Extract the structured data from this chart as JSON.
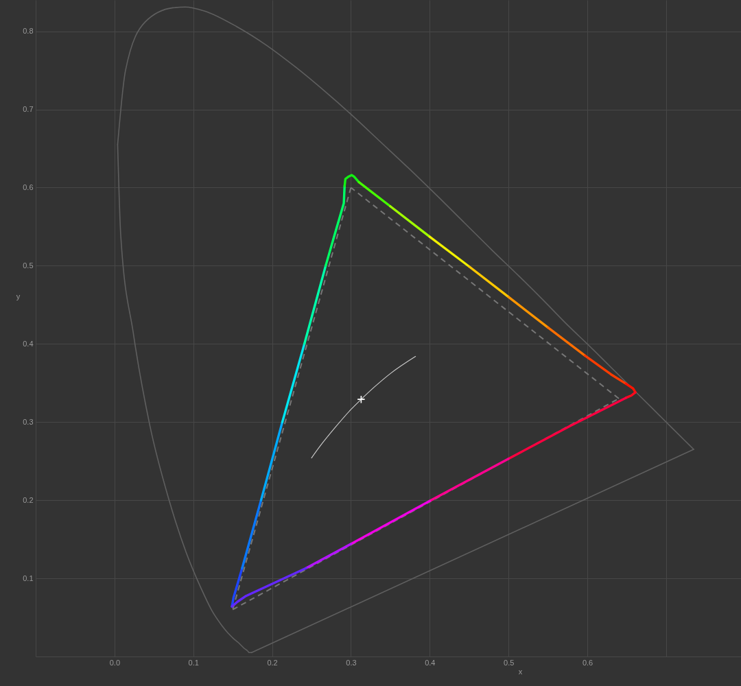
{
  "chart_data": {
    "type": "line",
    "xlabel": "x",
    "ylabel": "y",
    "xlim": [
      -0.1,
      0.795
    ],
    "ylim": [
      0,
      0.84
    ],
    "xticks": [
      {
        "value": 0,
        "label": "0.0"
      },
      0.1,
      0.2,
      0.3,
      0.4,
      0.5,
      0.6,
      {
        "value": 0.7,
        "label": null
      }
    ],
    "yticks": [
      0.1,
      0.2,
      0.3,
      0.4,
      0.5,
      0.6,
      0.7,
      0.8
    ],
    "grid": true,
    "series": [
      {
        "color": "#5f5f5f",
        "x": [
          0.174,
          0.173,
          0.171,
          0.169,
          0.164,
          0.161,
          0.157,
          0.151,
          0.144,
          0.136,
          0.124,
          0.11,
          0.091,
          0.069,
          0.045,
          0.024,
          0.008,
          0.004
        ],
        "values": [
          0.005,
          0.005,
          0.005,
          0.007,
          0.011,
          0.014,
          0.018,
          0.023,
          0.03,
          0.04,
          0.058,
          0.087,
          0.133,
          0.201,
          0.295,
          0.413,
          0.538,
          0.655
        ]
      },
      {
        "color": "#5f5f5f",
        "x": [
          0.004,
          0.014,
          0.039,
          0.074,
          0.09,
          0.114,
          0.155,
          0.193,
          0.23,
          0.266,
          0.302,
          0.337,
          0.373,
          0.409,
          0.444,
          0.479,
          0.513,
          0.545,
          0.575,
          0.603,
          0.627,
          0.648,
          0.666,
          0.68,
          0.692,
          0.708,
          0.719,
          0.73,
          0.735
        ],
        "values": [
          0.655,
          0.75,
          0.812,
          0.83,
          0.831,
          0.826,
          0.806,
          0.782,
          0.754,
          0.724,
          0.692,
          0.659,
          0.625,
          0.59,
          0.555,
          0.52,
          0.487,
          0.455,
          0.424,
          0.397,
          0.373,
          0.352,
          0.334,
          0.32,
          0.308,
          0.292,
          0.281,
          0.27,
          0.265
        ]
      },
      {
        "color": "#5f5f5f",
        "x": [
          0.735,
          0.174
        ],
        "values": [
          0.265,
          0.005
        ]
      },
      {
        "color": "#cccccc",
        "x": [
          0.25,
          0.26,
          0.28,
          0.3,
          0.313,
          0.33,
          0.35,
          0.382
        ],
        "values": [
          0.254,
          0.268,
          0.293,
          0.316,
          0.329,
          0.345,
          0.362,
          0.384
        ]
      },
      {
        "color": "#777777",
        "line_style": "dashed",
        "x": [
          0.64,
          0.3
        ],
        "values": [
          0.33,
          0.6
        ]
      },
      {
        "color": "#777777",
        "line_style": "dashed",
        "x": [
          0.3,
          0.15
        ],
        "values": [
          0.6,
          0.06
        ]
      },
      {
        "color": "#777777",
        "line_style": "dashed",
        "x": [
          0.15,
          0.64
        ],
        "values": [
          0.06,
          0.33
        ]
      },
      {
        "color": "#1e46ff",
        "x": [
          0.149,
          0.151,
          0.162
        ],
        "values": [
          0.064,
          0.075,
          0.113
        ]
      },
      {
        "color": "#0a78ff",
        "x": [
          0.162,
          0.186
        ],
        "values": [
          0.113,
          0.2
        ]
      },
      {
        "color": "#00aaff",
        "x": [
          0.186,
          0.213
        ],
        "values": [
          0.2,
          0.3
        ]
      },
      {
        "color": "#00e6f0",
        "x": [
          0.213,
          0.241
        ],
        "values": [
          0.3,
          0.4
        ]
      },
      {
        "color": "#00ffaa",
        "x": [
          0.241,
          0.268
        ],
        "values": [
          0.4,
          0.5
        ]
      },
      {
        "color": "#00ff64",
        "x": [
          0.268,
          0.278,
          0.291,
          0.292
        ],
        "values": [
          0.5,
          0.535,
          0.58,
          0.602
        ]
      },
      {
        "color": "#14f014",
        "x": [
          0.292,
          0.293,
          0.297,
          0.301,
          0.304,
          0.31
        ],
        "values": [
          0.602,
          0.611,
          0.614,
          0.616,
          0.614,
          0.607
        ]
      },
      {
        "color": "#46ff00",
        "x": [
          0.31,
          0.35
        ],
        "values": [
          0.607,
          0.576
        ]
      },
      {
        "color": "#a0ff00",
        "x": [
          0.35,
          0.4
        ],
        "values": [
          0.576,
          0.537
        ]
      },
      {
        "color": "#f0f000",
        "x": [
          0.4,
          0.45
        ],
        "values": [
          0.537,
          0.499
        ]
      },
      {
        "color": "#ffc800",
        "x": [
          0.45,
          0.5
        ],
        "values": [
          0.499,
          0.46
        ]
      },
      {
        "color": "#ff9600",
        "x": [
          0.5,
          0.55
        ],
        "values": [
          0.46,
          0.421
        ]
      },
      {
        "color": "#ff6e00",
        "x": [
          0.55,
          0.597
        ],
        "values": [
          0.421,
          0.385
        ]
      },
      {
        "color": "#ff3c00",
        "x": [
          0.597,
          0.63,
          0.649
        ],
        "values": [
          0.385,
          0.361,
          0.349
        ]
      },
      {
        "color": "#ff1400",
        "x": [
          0.649,
          0.658,
          0.661
        ],
        "values": [
          0.349,
          0.343,
          0.338
        ]
      },
      {
        "color": "#ff0a1e",
        "x": [
          0.661,
          0.656,
          0.649
        ],
        "values": [
          0.338,
          0.334,
          0.331
        ]
      },
      {
        "color": "#ff0040",
        "x": [
          0.649,
          0.578,
          0.5
        ],
        "values": [
          0.331,
          0.295,
          0.253
        ]
      },
      {
        "color": "#ff0090",
        "x": [
          0.5,
          0.4
        ],
        "values": [
          0.253,
          0.199
        ]
      },
      {
        "color": "#f000e6",
        "x": [
          0.4,
          0.3
        ],
        "values": [
          0.199,
          0.144
        ]
      },
      {
        "color": "#b414ff",
        "x": [
          0.3,
          0.243
        ],
        "values": [
          0.144,
          0.113
        ]
      },
      {
        "color": "#6428ff",
        "x": [
          0.243,
          0.166,
          0.156,
          0.149
        ],
        "values": [
          0.113,
          0.077,
          0.07,
          0.064
        ]
      },
      {
        "type": "scatter",
        "color": "#ffffff",
        "marker": "cross",
        "x": [
          0.313
        ],
        "values": [
          0.329
        ]
      }
    ]
  }
}
